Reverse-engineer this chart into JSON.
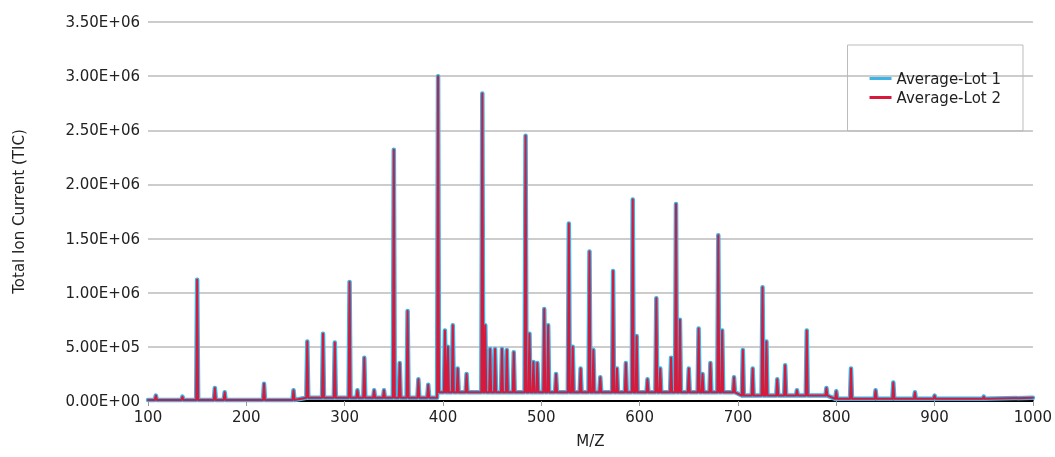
{
  "chart_data": {
    "type": "line",
    "xlabel": "M/Z",
    "ylabel": "Total Ion Current (TIC)",
    "x": [
      100,
      107,
      108,
      109,
      134,
      135,
      136,
      149,
      150,
      151,
      167,
      168,
      169,
      177,
      178,
      179,
      217,
      218,
      219,
      247,
      248,
      249,
      261,
      262,
      263,
      277,
      278,
      279,
      289,
      290,
      291,
      304,
      305,
      306,
      312,
      313,
      314,
      319,
      320,
      321,
      329,
      330,
      331,
      339,
      340,
      341,
      349,
      350,
      351,
      355,
      356,
      357,
      363,
      364,
      365,
      374,
      375,
      376,
      384,
      385,
      386,
      394,
      395,
      396,
      401,
      402,
      403,
      404,
      405,
      406,
      409,
      410,
      411,
      414,
      415,
      416,
      423,
      424,
      425,
      439,
      440,
      441,
      442,
      443,
      444,
      447,
      448,
      449,
      452,
      453,
      454,
      459,
      460,
      461,
      464,
      465,
      466,
      471,
      472,
      473,
      483,
      484,
      485,
      487,
      488,
      489,
      491,
      492,
      493,
      495,
      496,
      497,
      502,
      503,
      504,
      506,
      507,
      508,
      514,
      515,
      516,
      527,
      528,
      529,
      531,
      532,
      533,
      539,
      540,
      541,
      548,
      549,
      550,
      552,
      553,
      554,
      559,
      560,
      561,
      572,
      573,
      574,
      576,
      577,
      578,
      585,
      586,
      587,
      592,
      593,
      594,
      596,
      597,
      598,
      607,
      608,
      609,
      616,
      617,
      618,
      620,
      621,
      622,
      631,
      632,
      633,
      636,
      637,
      638,
      640,
      641,
      642,
      649,
      650,
      651,
      659,
      660,
      661,
      663,
      664,
      665,
      671,
      672,
      673,
      679,
      680,
      681,
      683,
      684,
      685,
      695,
      696,
      697,
      704,
      705,
      706,
      714,
      715,
      716,
      724,
      725,
      726,
      728,
      729,
      730,
      739,
      740,
      741,
      747,
      748,
      749,
      759,
      760,
      761,
      769,
      770,
      771,
      789,
      790,
      791,
      799,
      800,
      801,
      814,
      815,
      816,
      839,
      840,
      841,
      857,
      858,
      859,
      879,
      880,
      881,
      899,
      900,
      901,
      949,
      950,
      951,
      1000
    ],
    "series": [
      {
        "name": "Average-Lot 1",
        "color": "#3cb4e6",
        "values": [
          10000,
          10000,
          50000,
          10000,
          10000,
          40000,
          10000,
          10000,
          1120000,
          10000,
          10000,
          120000,
          10000,
          10000,
          80000,
          10000,
          10000,
          160000,
          10000,
          10000,
          100000,
          10000,
          30000,
          550000,
          30000,
          30000,
          620000,
          30000,
          30000,
          540000,
          30000,
          30000,
          1100000,
          30000,
          30000,
          100000,
          30000,
          30000,
          400000,
          30000,
          30000,
          100000,
          30000,
          30000,
          100000,
          30000,
          30000,
          2320000,
          30000,
          30000,
          350000,
          30000,
          30000,
          830000,
          30000,
          30000,
          200000,
          30000,
          30000,
          150000,
          30000,
          30000,
          3000000,
          80000,
          80000,
          650000,
          80000,
          80000,
          500000,
          80000,
          80000,
          700000,
          80000,
          80000,
          300000,
          80000,
          80000,
          250000,
          80000,
          80000,
          2840000,
          80000,
          80000,
          700000,
          80000,
          80000,
          480000,
          80000,
          80000,
          480000,
          80000,
          80000,
          480000,
          80000,
          80000,
          470000,
          80000,
          80000,
          450000,
          80000,
          80000,
          2450000,
          80000,
          80000,
          620000,
          80000,
          80000,
          360000,
          80000,
          80000,
          350000,
          80000,
          80000,
          850000,
          80000,
          80000,
          700000,
          80000,
          80000,
          250000,
          80000,
          80000,
          1640000,
          80000,
          80000,
          500000,
          80000,
          80000,
          300000,
          80000,
          80000,
          1380000,
          80000,
          80000,
          470000,
          80000,
          80000,
          220000,
          80000,
          80000,
          1200000,
          80000,
          80000,
          300000,
          80000,
          80000,
          350000,
          80000,
          80000,
          1860000,
          80000,
          80000,
          600000,
          80000,
          80000,
          200000,
          80000,
          80000,
          950000,
          80000,
          80000,
          300000,
          80000,
          80000,
          400000,
          80000,
          80000,
          1820000,
          80000,
          80000,
          750000,
          80000,
          80000,
          300000,
          80000,
          80000,
          670000,
          80000,
          80000,
          250000,
          80000,
          80000,
          350000,
          80000,
          80000,
          1530000,
          80000,
          80000,
          650000,
          80000,
          80000,
          220000,
          80000,
          50000,
          470000,
          50000,
          50000,
          300000,
          50000,
          50000,
          1050000,
          50000,
          50000,
          550000,
          50000,
          50000,
          200000,
          50000,
          50000,
          330000,
          50000,
          50000,
          100000,
          50000,
          50000,
          650000,
          50000,
          50000,
          120000,
          50000,
          20000,
          90000,
          20000,
          20000,
          300000,
          20000,
          20000,
          100000,
          20000,
          20000,
          170000,
          20000,
          20000,
          80000,
          20000,
          20000,
          50000,
          20000,
          20000,
          40000,
          20000,
          30000
        ]
      },
      {
        "name": "Average-Lot 2",
        "color": "#d7193c",
        "values": [
          10000,
          10000,
          50000,
          10000,
          10000,
          40000,
          10000,
          10000,
          1120000,
          10000,
          10000,
          120000,
          10000,
          10000,
          80000,
          10000,
          10000,
          160000,
          10000,
          10000,
          100000,
          10000,
          30000,
          550000,
          30000,
          30000,
          620000,
          30000,
          30000,
          540000,
          30000,
          30000,
          1100000,
          30000,
          30000,
          100000,
          30000,
          30000,
          400000,
          30000,
          30000,
          100000,
          30000,
          30000,
          100000,
          30000,
          30000,
          2320000,
          30000,
          30000,
          350000,
          30000,
          30000,
          830000,
          30000,
          30000,
          200000,
          30000,
          30000,
          150000,
          30000,
          30000,
          3000000,
          80000,
          80000,
          650000,
          80000,
          80000,
          500000,
          80000,
          80000,
          700000,
          80000,
          80000,
          300000,
          80000,
          80000,
          250000,
          80000,
          80000,
          2840000,
          80000,
          80000,
          700000,
          80000,
          80000,
          480000,
          80000,
          80000,
          480000,
          80000,
          80000,
          480000,
          80000,
          80000,
          470000,
          80000,
          80000,
          450000,
          80000,
          80000,
          2450000,
          80000,
          80000,
          620000,
          80000,
          80000,
          360000,
          80000,
          80000,
          350000,
          80000,
          80000,
          850000,
          80000,
          80000,
          700000,
          80000,
          80000,
          250000,
          80000,
          80000,
          1640000,
          80000,
          80000,
          500000,
          80000,
          80000,
          300000,
          80000,
          80000,
          1380000,
          80000,
          80000,
          470000,
          80000,
          80000,
          220000,
          80000,
          80000,
          1200000,
          80000,
          80000,
          300000,
          80000,
          80000,
          350000,
          80000,
          80000,
          1860000,
          80000,
          80000,
          600000,
          80000,
          80000,
          200000,
          80000,
          80000,
          950000,
          80000,
          80000,
          300000,
          80000,
          80000,
          400000,
          80000,
          80000,
          1820000,
          80000,
          80000,
          750000,
          80000,
          80000,
          300000,
          80000,
          80000,
          670000,
          80000,
          80000,
          250000,
          80000,
          80000,
          350000,
          80000,
          80000,
          1530000,
          80000,
          80000,
          650000,
          80000,
          80000,
          220000,
          80000,
          50000,
          470000,
          50000,
          50000,
          300000,
          50000,
          50000,
          1050000,
          50000,
          50000,
          550000,
          50000,
          50000,
          200000,
          50000,
          50000,
          330000,
          50000,
          50000,
          100000,
          50000,
          50000,
          650000,
          50000,
          50000,
          120000,
          50000,
          20000,
          90000,
          20000,
          20000,
          300000,
          20000,
          20000,
          100000,
          20000,
          20000,
          170000,
          20000,
          20000,
          80000,
          20000,
          20000,
          50000,
          20000,
          20000,
          40000,
          20000,
          30000
        ]
      }
    ],
    "xlim": [
      100,
      1000
    ],
    "xticks": [
      100,
      200,
      300,
      400,
      500,
      600,
      700,
      800,
      900,
      1000
    ],
    "ylim": [
      0,
      3500000
    ],
    "yticks": [
      {
        "value": 0,
        "label": "0.00E+00"
      },
      {
        "value": 500000,
        "label": "5.00E+05"
      },
      {
        "value": 1000000,
        "label": "1.00E+06"
      },
      {
        "value": 1500000,
        "label": "1.50E+06"
      },
      {
        "value": 2000000,
        "label": "2.00E+06"
      },
      {
        "value": 2500000,
        "label": "2.50E+06"
      },
      {
        "value": 3000000,
        "label": "3.00E+06"
      },
      {
        "value": 3500000,
        "label": "3.50E+06"
      }
    ],
    "grid": "y",
    "legend": "top right",
    "marker": "none",
    "line_style": "solid"
  }
}
